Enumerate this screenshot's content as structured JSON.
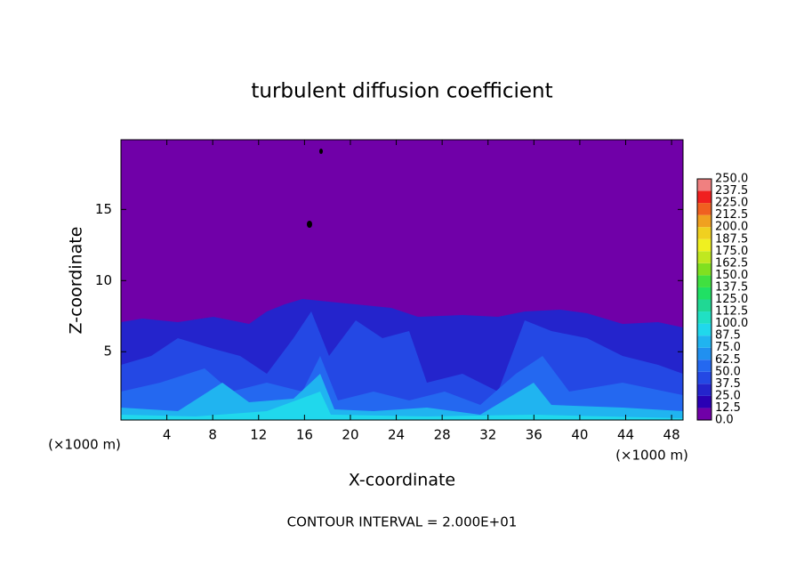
{
  "chart_data": {
    "type": "contour",
    "title": "turbulent diffusion coefficient",
    "x_label": "X-coordinate",
    "y_label": "Z-coordinate",
    "x_unit_left": "(×1000 m)",
    "x_unit_right": "(×1000 m)",
    "footnote": "CONTOUR INTERVAL = 2.000E+01",
    "xlim": [
      0,
      49
    ],
    "ylim": [
      0.2,
      19.9
    ],
    "xticks": [
      4,
      8,
      12,
      16,
      20,
      24,
      28,
      32,
      36,
      40,
      44,
      48
    ],
    "yticks": [
      5,
      10,
      15
    ],
    "colorbar": {
      "levels": [
        {
          "value": 0,
          "label": "0.0"
        },
        12.5,
        {
          "value": 25,
          "label": "25.0"
        },
        37.5,
        {
          "value": 50,
          "label": "50.0"
        },
        62.5,
        {
          "value": 75,
          "label": "75.0"
        },
        87.5,
        {
          "value": 100,
          "label": "100.0"
        },
        112.5,
        {
          "value": 125,
          "label": "125.0"
        },
        137.5,
        {
          "value": 150,
          "label": "150.0"
        },
        162.5,
        {
          "value": 175,
          "label": "175.0"
        },
        187.5,
        {
          "value": 200,
          "label": "200.0"
        },
        212.5,
        {
          "value": 225,
          "label": "225.0"
        },
        237.5,
        {
          "value": 250,
          "label": "250.0"
        }
      ],
      "colors": [
        "#7000a8",
        "#2a00b4",
        "#2424cc",
        "#2448e4",
        "#2468f0",
        "#2090f0",
        "#20b4f0",
        "#20d8ec",
        "#20e0c4",
        "#20d894",
        "#20e064",
        "#40e040",
        "#80e020",
        "#c0e820",
        "#f0f020",
        "#f0d020",
        "#f0a020",
        "#f06020",
        "#f02020",
        "#f08080"
      ]
    }
  }
}
